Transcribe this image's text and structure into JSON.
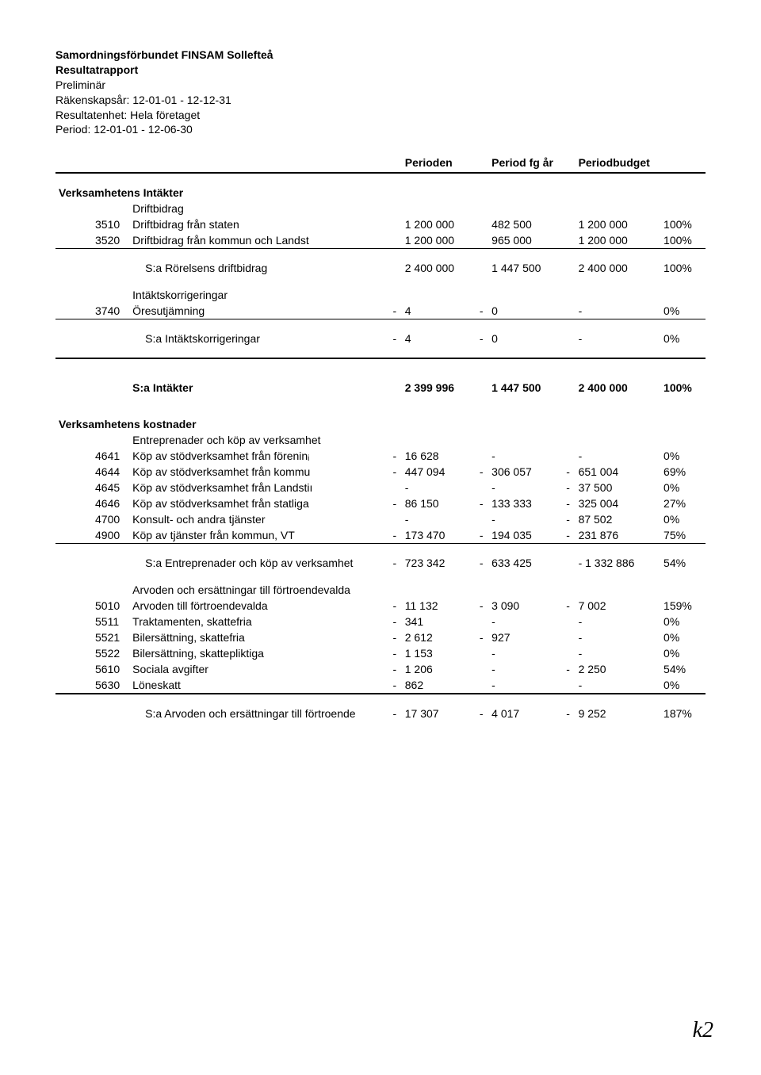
{
  "header": {
    "org": "Samordningsförbundet FINSAM Sollefteå",
    "title": "Resultatrapport",
    "prelim": "Preliminär",
    "fiscal": "Räkenskapsår: 12-01-01 - 12-12-31",
    "unit": "Resultatenhet: Hela företaget",
    "period": "Period: 12-01-01 - 12-06-30"
  },
  "columns": {
    "perioden": "Perioden",
    "periodfg": "Period fg år",
    "budget": "Periodbudget"
  },
  "sections": {
    "intakter_h": "Verksamhetens Intäkter",
    "driftbidrag": "Driftbidrag",
    "r3510": {
      "code": "3510",
      "desc": "Driftbidrag från staten",
      "p": "1 200 000",
      "fg": "482 500",
      "b": "1 200 000",
      "pct": "100%"
    },
    "r3520": {
      "code": "3520",
      "desc": "Driftbidrag från kommun och Landst",
      "p": "1 200 000",
      "fg": "965 000",
      "b": "1 200 000",
      "pct": "100%"
    },
    "sum_drift": {
      "desc": "S:a Rörelsens driftbidrag",
      "p": "2 400 000",
      "fg": "1 447 500",
      "b": "2 400 000",
      "pct": "100%"
    },
    "intaktskorr": "Intäktskorrigeringar",
    "r3740": {
      "code": "3740",
      "desc": "Öresutjämning",
      "s1": "-",
      "p": "4",
      "s2": "-",
      "fg": "0",
      "b": "-",
      "pct": "0%"
    },
    "sum_korr": {
      "desc": "S:a Intäktskorrigeringar",
      "s1": "-",
      "p": "4",
      "s2": "-",
      "fg": "0",
      "b": "-",
      "pct": "0%"
    },
    "sum_intakter": {
      "desc": "S:a Intäkter",
      "p": "2 399 996",
      "fg": "1 447 500",
      "b": "2 400 000",
      "pct": "100%"
    },
    "kostnader_h": "Verksamhetens kostnader",
    "entre_h": "Entreprenader och köp av verksamhet",
    "r4641": {
      "code": "4641",
      "desc": "Köp av stödverksamhet från föreninᵢ",
      "s1": "-",
      "p": "16 628",
      "fg": "-",
      "b": "-",
      "pct": "0%"
    },
    "r4644": {
      "code": "4644",
      "desc": "Köp av stödverksamhet från kommu",
      "s1": "-",
      "p": "447 094",
      "s2": "-",
      "fg": "306 057",
      "s3": "-",
      "b": "651 004",
      "pct": "69%"
    },
    "r4645": {
      "code": "4645",
      "desc": "Köp av stödverksamhet från Landstiı",
      "p": "-",
      "fg": "-",
      "s3": "-",
      "b": "37 500",
      "pct": "0%"
    },
    "r4646": {
      "code": "4646",
      "desc": "Köp av stödverksamhet från statliga",
      "s1": "-",
      "p": "86 150",
      "s2": "-",
      "fg": "133 333",
      "s3": "-",
      "b": "325 004",
      "pct": "27%"
    },
    "r4700": {
      "code": "4700",
      "desc": "Konsult- och andra tjänster",
      "p": "-",
      "fg": "-",
      "s3": "-",
      "b": "87 502",
      "pct": "0%"
    },
    "r4900": {
      "code": "4900",
      "desc": "Köp av tjänster från kommun, VT",
      "s1": "-",
      "p": "173 470",
      "s2": "-",
      "fg": "194 035",
      "s3": "-",
      "b": "231 876",
      "pct": "75%"
    },
    "sum_entre": {
      "desc": "S:a Entreprenader och köp av verksamhet",
      "s1": "-",
      "p": "723 342",
      "s2": "-",
      "fg": "633 425",
      "b": "- 1 332 886",
      "pct": "54%"
    },
    "arvoden_h": "Arvoden och ersättningar till förtroendevalda",
    "r5010": {
      "code": "5010",
      "desc": "Arvoden till förtroendevalda",
      "s1": "-",
      "p": "11 132",
      "s2": "-",
      "fg": "3 090",
      "s3": "-",
      "b": "7 002",
      "pct": "159%"
    },
    "r5511": {
      "code": "5511",
      "desc": "Traktamenten, skattefria",
      "s1": "-",
      "p": "341",
      "fg": "-",
      "b": "-",
      "pct": "0%"
    },
    "r5521": {
      "code": "5521",
      "desc": "Bilersättning, skattefria",
      "s1": "-",
      "p": "2 612",
      "s2": "-",
      "fg": "927",
      "b": "-",
      "pct": "0%"
    },
    "r5522": {
      "code": "5522",
      "desc": "Bilersättning, skattepliktiga",
      "s1": "-",
      "p": "1 153",
      "fg": "-",
      "b": "-",
      "pct": "0%"
    },
    "r5610": {
      "code": "5610",
      "desc": "Sociala avgifter",
      "s1": "-",
      "p": "1 206",
      "fg": "-",
      "s3": "-",
      "b": "2 250",
      "pct": "54%"
    },
    "r5630": {
      "code": "5630",
      "desc": "Löneskatt",
      "s1": "-",
      "p": "862",
      "fg": "-",
      "b": "-",
      "pct": "0%"
    },
    "sum_arvoden": {
      "desc": "S:a Arvoden och ersättningar till förtroende",
      "s1": "-",
      "p": "17 307",
      "s2": "-",
      "fg": "4 017",
      "s3": "-",
      "b": "9 252",
      "pct": "187%"
    }
  },
  "signature": "k2"
}
